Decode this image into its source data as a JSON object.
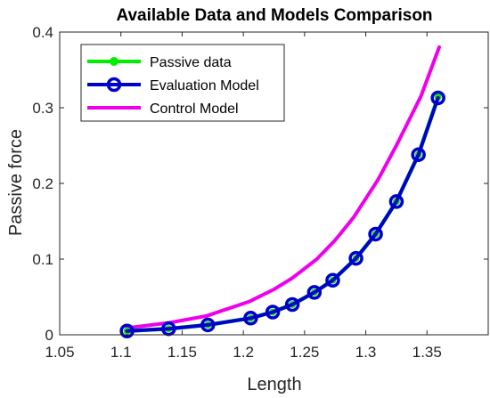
{
  "chart_data": {
    "type": "line",
    "title": "Available Data and Models Comparison",
    "xlabel": "Length",
    "ylabel": "Passive force",
    "xlim": [
      1.05,
      1.4
    ],
    "ylim": [
      0,
      0.4
    ],
    "xticks": [
      "1.05",
      "1.1",
      "1.15",
      "1.2",
      "1.25",
      "1.3",
      "1.35"
    ],
    "yticks": [
      "0",
      "0.1",
      "0.2",
      "0.3",
      "0.4"
    ],
    "grid": false,
    "legend_position": "top-left",
    "series": [
      {
        "name": "Passive data",
        "color": "#00ee00",
        "marker": "dot",
        "x": [
          1.105,
          1.139,
          1.171,
          1.206,
          1.224,
          1.24,
          1.258,
          1.273,
          1.292,
          1.308,
          1.325,
          1.343,
          1.359
        ],
        "y": [
          0.005,
          0.008,
          0.013,
          0.022,
          0.03,
          0.04,
          0.056,
          0.072,
          0.101,
          0.133,
          0.176,
          0.238,
          0.314
        ]
      },
      {
        "name": "Evaluation Model",
        "color": "#0000cc",
        "marker": "circle",
        "x": [
          1.105,
          1.139,
          1.171,
          1.206,
          1.224,
          1.24,
          1.258,
          1.273,
          1.292,
          1.308,
          1.325,
          1.343,
          1.359
        ],
        "y": [
          0.005,
          0.008,
          0.013,
          0.022,
          0.03,
          0.04,
          0.056,
          0.072,
          0.101,
          0.133,
          0.176,
          0.238,
          0.313
        ]
      },
      {
        "name": "Control Model",
        "color": "#ee00ee",
        "marker": "none",
        "x": [
          1.105,
          1.14,
          1.17,
          1.205,
          1.225,
          1.24,
          1.26,
          1.275,
          1.29,
          1.31,
          1.325,
          1.345,
          1.36
        ],
        "y": [
          0.009,
          0.016,
          0.025,
          0.044,
          0.06,
          0.075,
          0.1,
          0.125,
          0.155,
          0.205,
          0.25,
          0.315,
          0.38
        ]
      }
    ]
  }
}
